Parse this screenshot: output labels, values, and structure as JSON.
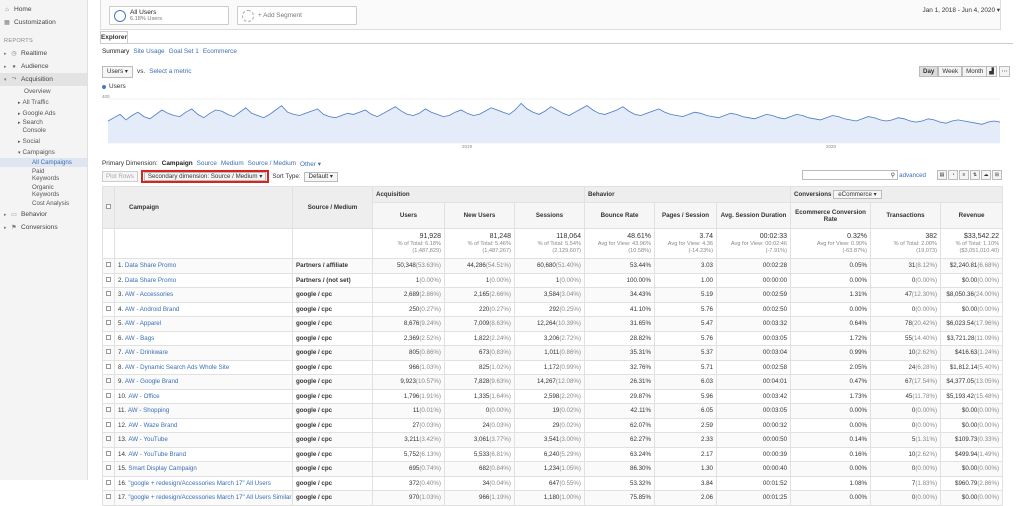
{
  "sidebar": {
    "home": "Home",
    "customization": "Customization",
    "reports_label": "REPORTS",
    "realtime": "Realtime",
    "audience": "Audience",
    "acquisition": "Acquisition",
    "acq_items": [
      "Overview",
      "All Traffic",
      "Google Ads",
      "Search Console",
      "Social"
    ],
    "campaigns": "Campaigns",
    "camp_items": [
      "All Campaigns",
      "Paid Keywords",
      "Organic Keywords",
      "Cost Analysis"
    ],
    "behavior": "Behavior",
    "conversions": "Conversions"
  },
  "segments": {
    "seg1_title": "All Users",
    "seg1_sub": "6.18% Users",
    "seg2_title": "+ Add Segment"
  },
  "date_range": "Jan 1, 2018 - Jun 4, 2020",
  "explorer_tab": "Explorer",
  "subtabs": [
    "Summary",
    "Site Usage",
    "Goal Set 1",
    "Ecommerce"
  ],
  "metric": {
    "selected": "Users",
    "vs": "vs.",
    "select": "Select a metric"
  },
  "granularity": [
    "Day",
    "Week",
    "Month"
  ],
  "legend": "Users",
  "chart_data": {
    "type": "line",
    "series": [
      {
        "name": "Users",
        "values": [
          200,
          230,
          260,
          210,
          250,
          280,
          240,
          220,
          260,
          300,
          270,
          250,
          240,
          280,
          310,
          260,
          230,
          270,
          300,
          290,
          260,
          240,
          280,
          320,
          270,
          250,
          230,
          260,
          300,
          340,
          280,
          260,
          250,
          270,
          290,
          310,
          260,
          240,
          230,
          250,
          270,
          260,
          280,
          300,
          260,
          240,
          270,
          300,
          330,
          290,
          260,
          250,
          270,
          310,
          280,
          260,
          240,
          250,
          280,
          300,
          270,
          250,
          260,
          290,
          320,
          300,
          280,
          260,
          300,
          360,
          310,
          280,
          260,
          290,
          330,
          300,
          270,
          250,
          280,
          310,
          340,
          300,
          270,
          260,
          280,
          300,
          330,
          290,
          260,
          250,
          270,
          290,
          310,
          280,
          260,
          250,
          240,
          260,
          280,
          270,
          250,
          240,
          230,
          250,
          270,
          260,
          240,
          230,
          220,
          240,
          260,
          250,
          230,
          220,
          240,
          260,
          250,
          230,
          220,
          210,
          230,
          250,
          240,
          220,
          210,
          200,
          220,
          240,
          230,
          210,
          200,
          210,
          230,
          220,
          200,
          190,
          200,
          220,
          210,
          190,
          180,
          200,
          210,
          200,
          190,
          180,
          170,
          190,
          200,
          190
        ]
      }
    ],
    "ylim": [
      0,
      400
    ],
    "x_ticks": [
      "2019",
      "2020"
    ]
  },
  "primary_dimension": {
    "label": "Primary Dimension:",
    "current": "Campaign",
    "options": [
      "Source",
      "Medium",
      "Source / Medium",
      "Other"
    ]
  },
  "toolbar": {
    "plot_rows": "Plot Rows",
    "secondary_dimension": "Secondary dimension: Source / Medium",
    "sort_type_label": "Sort Type:",
    "sort_type_value": "Default",
    "advanced": "advanced"
  },
  "table": {
    "groups": {
      "acquisition": "Acquisition",
      "behavior": "Behavior",
      "conversions": "Conversions",
      "conv_select": "eCommerce"
    },
    "headers": [
      "Campaign",
      "Source / Medium",
      "Users",
      "New Users",
      "Sessions",
      "Bounce Rate",
      "Pages / Session",
      "Avg. Session Duration",
      "Ecommerce Conversion Rate",
      "Transactions",
      "Revenue"
    ],
    "totals": [
      {
        "v": "91,928",
        "s": "% of Total: 6.18% (1,487,829)"
      },
      {
        "v": "81,248",
        "s": "% of Total: 5.46% (1,487,267)"
      },
      {
        "v": "118,064",
        "s": "% of Total: 5.54% (2,129,607)"
      },
      {
        "v": "48.61%",
        "s": "Avg for View: 43.96% (10.58%)"
      },
      {
        "v": "3.74",
        "s": "Avg for View: 4.36 (-14.23%)"
      },
      {
        "v": "00:02:33",
        "s": "Avg for View: 00:02:46 (-7.91%)"
      },
      {
        "v": "0.32%",
        "s": "Avg for View: 0.90% (-63.87%)"
      },
      {
        "v": "382",
        "s": "% of Total: 2.00% (19,073)"
      },
      {
        "v": "$33,542.22",
        "s": "% of Total: 1.10% ($3,051,010.40)"
      }
    ],
    "rows": [
      {
        "n": "1.",
        "c": "Data Share Promo",
        "s": "Partners / affiliate",
        "u": "50,348",
        "up": "(53.63%)",
        "nu": "44,286",
        "nup": "(54.51%)",
        "se": "60,680",
        "sep": "(51.40%)",
        "br": "53.44%",
        "ps": "3.03",
        "d": "00:02:28",
        "cr": "0.05%",
        "t": "31",
        "tp": "(8.12%)",
        "r": "$2,240.81",
        "rp": "(6.68%)"
      },
      {
        "n": "2.",
        "c": "Data Share Promo",
        "s": "Partners / (not set)",
        "u": "1",
        "up": "(0.00%)",
        "nu": "1",
        "nup": "(0.00%)",
        "se": "1",
        "sep": "(0.00%)",
        "br": "100.00%",
        "ps": "1.00",
        "d": "00:00:00",
        "cr": "0.00%",
        "t": "0",
        "tp": "(0.00%)",
        "r": "$0.00",
        "rp": "(0.00%)"
      },
      {
        "n": "3.",
        "c": "AW - Accessories",
        "s": "google / cpc",
        "u": "2,689",
        "up": "(2.86%)",
        "nu": "2,165",
        "nup": "(2.66%)",
        "se": "3,584",
        "sep": "(3.04%)",
        "br": "34.43%",
        "ps": "5.19",
        "d": "00:02:59",
        "cr": "1.31%",
        "t": "47",
        "tp": "(12.30%)",
        "r": "$8,050.36",
        "rp": "(24.00%)"
      },
      {
        "n": "4.",
        "c": "AW - Android Brand",
        "s": "google / cpc",
        "u": "250",
        "up": "(0.27%)",
        "nu": "220",
        "nup": "(0.27%)",
        "se": "292",
        "sep": "(0.25%)",
        "br": "41.10%",
        "ps": "5.76",
        "d": "00:02:50",
        "cr": "0.00%",
        "t": "0",
        "tp": "(0.00%)",
        "r": "$0.00",
        "rp": "(0.00%)"
      },
      {
        "n": "5.",
        "c": "AW - Apparel",
        "s": "google / cpc",
        "u": "8,676",
        "up": "(9.24%)",
        "nu": "7,009",
        "nup": "(8.63%)",
        "se": "12,264",
        "sep": "(10.39%)",
        "br": "31.65%",
        "ps": "5.47",
        "d": "00:03:32",
        "cr": "0.64%",
        "t": "78",
        "tp": "(20.42%)",
        "r": "$6,023.54",
        "rp": "(17.96%)"
      },
      {
        "n": "6.",
        "c": "AW - Bags",
        "s": "google / cpc",
        "u": "2,369",
        "up": "(2.52%)",
        "nu": "1,822",
        "nup": "(2.24%)",
        "se": "3,206",
        "sep": "(2.72%)",
        "br": "28.82%",
        "ps": "5.76",
        "d": "00:03:05",
        "cr": "1.72%",
        "t": "55",
        "tp": "(14.40%)",
        "r": "$3,721.28",
        "rp": "(11.09%)"
      },
      {
        "n": "7.",
        "c": "AW - Drinkware",
        "s": "google / cpc",
        "u": "805",
        "up": "(0.86%)",
        "nu": "673",
        "nup": "(0.83%)",
        "se": "1,011",
        "sep": "(0.86%)",
        "br": "35.31%",
        "ps": "5.37",
        "d": "00:03:04",
        "cr": "0.99%",
        "t": "10",
        "tp": "(2.62%)",
        "r": "$416.63",
        "rp": "(1.24%)"
      },
      {
        "n": "8.",
        "c": "AW - Dynamic Search Ads Whole Site",
        "s": "google / cpc",
        "u": "966",
        "up": "(1.03%)",
        "nu": "825",
        "nup": "(1.02%)",
        "se": "1,172",
        "sep": "(0.99%)",
        "br": "32.76%",
        "ps": "5.71",
        "d": "00:02:58",
        "cr": "2.05%",
        "t": "24",
        "tp": "(6.28%)",
        "r": "$1,812.14",
        "rp": "(5.40%)"
      },
      {
        "n": "9.",
        "c": "AW - Google Brand",
        "s": "google / cpc",
        "u": "9,923",
        "up": "(10.57%)",
        "nu": "7,828",
        "nup": "(9.63%)",
        "se": "14,267",
        "sep": "(12.08%)",
        "br": "26.31%",
        "ps": "6.03",
        "d": "00:04:01",
        "cr": "0.47%",
        "t": "67",
        "tp": "(17.54%)",
        "r": "$4,377.05",
        "rp": "(13.05%)"
      },
      {
        "n": "10.",
        "c": "AW - Office",
        "s": "google / cpc",
        "u": "1,796",
        "up": "(1.91%)",
        "nu": "1,335",
        "nup": "(1.64%)",
        "se": "2,598",
        "sep": "(2.20%)",
        "br": "29.87%",
        "ps": "5.96",
        "d": "00:03:42",
        "cr": "1.73%",
        "t": "45",
        "tp": "(11.78%)",
        "r": "$5,193.42",
        "rp": "(15.48%)"
      },
      {
        "n": "11.",
        "c": "AW - Shopping",
        "s": "google / cpc",
        "u": "11",
        "up": "(0.01%)",
        "nu": "0",
        "nup": "(0.00%)",
        "se": "19",
        "sep": "(0.02%)",
        "br": "42.11%",
        "ps": "6.05",
        "d": "00:03:05",
        "cr": "0.00%",
        "t": "0",
        "tp": "(0.00%)",
        "r": "$0.00",
        "rp": "(0.00%)"
      },
      {
        "n": "12.",
        "c": "AW - Waze Brand",
        "s": "google / cpc",
        "u": "27",
        "up": "(0.03%)",
        "nu": "24",
        "nup": "(0.03%)",
        "se": "29",
        "sep": "(0.02%)",
        "br": "62.07%",
        "ps": "2.59",
        "d": "00:00:32",
        "cr": "0.00%",
        "t": "0",
        "tp": "(0.00%)",
        "r": "$0.00",
        "rp": "(0.00%)"
      },
      {
        "n": "13.",
        "c": "AW - YouTube",
        "s": "google / cpc",
        "u": "3,211",
        "up": "(3.42%)",
        "nu": "3,061",
        "nup": "(3.77%)",
        "se": "3,541",
        "sep": "(3.00%)",
        "br": "62.27%",
        "ps": "2.33",
        "d": "00:00:50",
        "cr": "0.14%",
        "t": "5",
        "tp": "(1.31%)",
        "r": "$109.73",
        "rp": "(0.33%)"
      },
      {
        "n": "14.",
        "c": "AW - YouTube Brand",
        "s": "google / cpc",
        "u": "5,752",
        "up": "(6.13%)",
        "nu": "5,533",
        "nup": "(6.81%)",
        "se": "6,240",
        "sep": "(5.29%)",
        "br": "63.24%",
        "ps": "2.17",
        "d": "00:00:39",
        "cr": "0.16%",
        "t": "10",
        "tp": "(2.62%)",
        "r": "$499.94",
        "rp": "(1.49%)"
      },
      {
        "n": "15.",
        "c": "Smart Display Campaign",
        "s": "google / cpc",
        "u": "695",
        "up": "(0.74%)",
        "nu": "682",
        "nup": "(0.84%)",
        "se": "1,234",
        "sep": "(1.05%)",
        "br": "86.30%",
        "ps": "1.30",
        "d": "00:00:40",
        "cr": "0.00%",
        "t": "0",
        "tp": "(0.00%)",
        "r": "$0.00",
        "rp": "(0.00%)"
      },
      {
        "n": "16.",
        "c": "\"google + redesign/Accessories March 17\" All Users",
        "s": "google / cpc",
        "u": "372",
        "up": "(0.40%)",
        "nu": "34",
        "nup": "(0.04%)",
        "se": "647",
        "sep": "(0.55%)",
        "br": "53.32%",
        "ps": "3.84",
        "d": "00:01:52",
        "cr": "1.08%",
        "t": "7",
        "tp": "(1.83%)",
        "r": "$960.79",
        "rp": "(2.86%)"
      },
      {
        "n": "17.",
        "c": "\"google + redesign/Accessories March 17\" All Users Similar Audiences",
        "s": "google / cpc",
        "u": "970",
        "up": "(1.03%)",
        "nu": "966",
        "nup": "(1.19%)",
        "se": "1,180",
        "sep": "(1.00%)",
        "br": "75.85%",
        "ps": "2.06",
        "d": "00:01:25",
        "cr": "0.00%",
        "t": "0",
        "tp": "(0.00%)",
        "r": "$0.00",
        "rp": "(0.00%)"
      }
    ]
  }
}
